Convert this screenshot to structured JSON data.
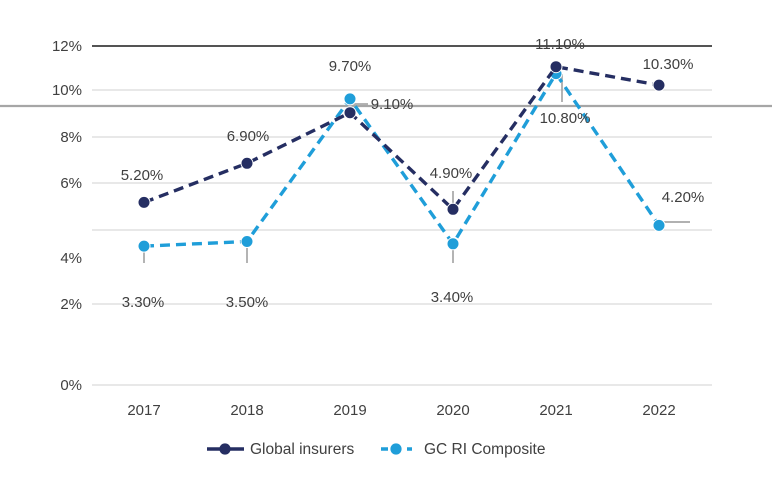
{
  "chart_data": {
    "type": "line",
    "title": "",
    "categories": [
      "2017",
      "2018",
      "2019",
      "2020",
      "2021",
      "2022"
    ],
    "series": [
      {
        "name": "Global insurers",
        "color": "#252e62",
        "line_style": "dashed",
        "marker": "circle",
        "values": [
          5.2,
          6.9,
          9.1,
          4.9,
          11.1,
          10.3
        ],
        "data_labels": [
          "5.20%",
          "6.90%",
          "9.10%",
          "4.90%",
          "11.10%",
          "10.30%"
        ]
      },
      {
        "name": "GC RI Composite",
        "color": "#1f9ed9",
        "line_style": "dashed",
        "marker": "circle",
        "values": [
          3.3,
          3.5,
          9.7,
          3.4,
          10.8,
          4.2
        ],
        "data_labels": [
          "3.30%",
          "3.50%",
          "9.70%",
          "3.40%",
          "10.80%",
          "4.20%"
        ]
      }
    ],
    "x_axis": {
      "tick_labels": [
        "2017",
        "2018",
        "2019",
        "2020",
        "2021",
        "2022"
      ]
    },
    "y_axis": {
      "tick_labels": [
        "12%",
        "10%",
        "8%",
        "6%",
        "4%",
        "2%",
        "0%"
      ],
      "range": [
        0,
        12
      ],
      "unit": "percent"
    },
    "reference_line": {
      "label": "",
      "approx_value": 9.4
    },
    "grid": "horizontal",
    "legend": {
      "position": "bottom",
      "entries": [
        "Global insurers",
        "GC RI Composite"
      ]
    },
    "colors": {
      "gridline": "#d9d9d9",
      "axis_top_line": "#3c3c3c",
      "reference_line": "#a6a6a6",
      "whisker": "#a6a6a6",
      "text": "#404040",
      "background": "#ffffff"
    }
  }
}
